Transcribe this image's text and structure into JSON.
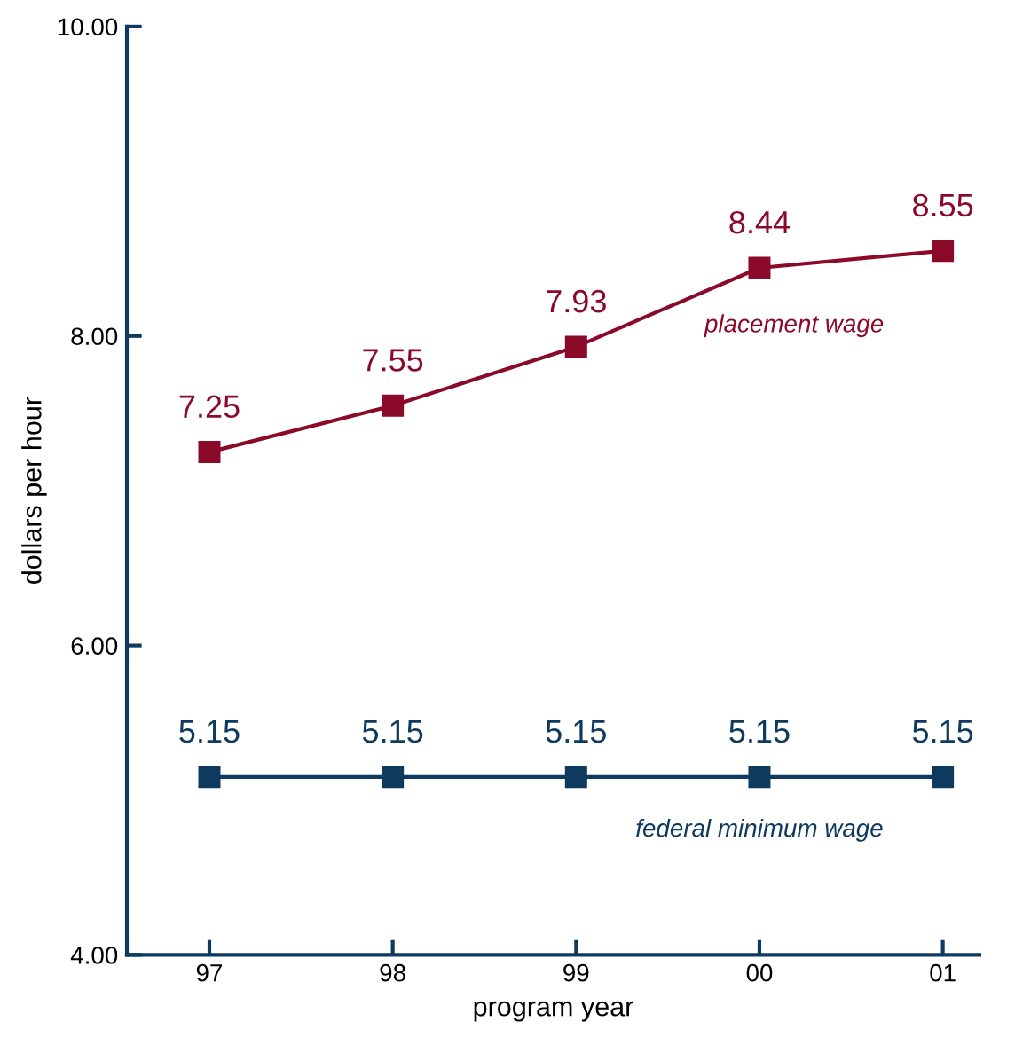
{
  "chart_data": {
    "type": "line",
    "xlabel": "program year",
    "ylabel": "dollars per hour",
    "categories": [
      "97",
      "98",
      "99",
      "00",
      "01"
    ],
    "series": [
      {
        "name": "placement wage",
        "color": "#8b0a2a",
        "values": [
          7.25,
          7.55,
          7.93,
          8.44,
          8.55
        ]
      },
      {
        "name": "federal minimum wage",
        "color": "#0f3a5f",
        "values": [
          5.15,
          5.15,
          5.15,
          5.15,
          5.15
        ]
      }
    ],
    "ylim": [
      4,
      10
    ],
    "yticks": [
      {
        "value": 4,
        "label": "4.00"
      },
      {
        "value": 6,
        "label": "6.00"
      },
      {
        "value": 8,
        "label": "8.00"
      },
      {
        "value": 10,
        "label": "10.00"
      }
    ],
    "data_labels": true,
    "marker": "square",
    "line_style": "solid",
    "grid": false,
    "legend": false
  }
}
